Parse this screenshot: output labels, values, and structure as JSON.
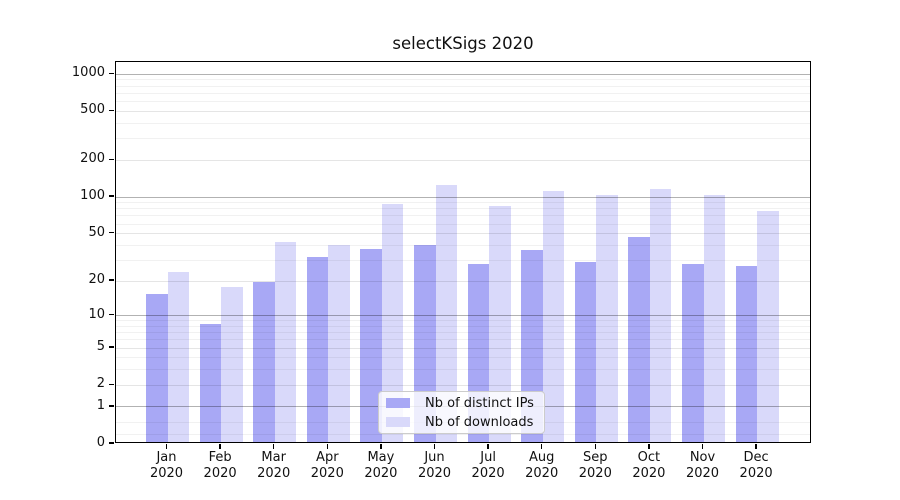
{
  "title": "selectKSigs 2020",
  "chart_data": {
    "type": "bar",
    "title": "selectKSigs 2020",
    "categories": [
      "Jan",
      "Feb",
      "Mar",
      "Apr",
      "May",
      "Jun",
      "Jul",
      "Aug",
      "Sep",
      "Oct",
      "Nov",
      "Dec"
    ],
    "x_year_label": "2020",
    "series": [
      {
        "name": "Nb of distinct IPs",
        "color": "#a8a8f5",
        "values": [
          15,
          8,
          19,
          31,
          36,
          39,
          27,
          35,
          28,
          45,
          27,
          26
        ]
      },
      {
        "name": "Nb of downloads",
        "color": "#d9d9fa",
        "values": [
          23,
          17,
          41,
          39,
          84,
          120,
          81,
          108,
          100,
          112,
          101,
          74
        ]
      }
    ],
    "yscale": "log1p",
    "ylim": [
      0,
      1260
    ],
    "y_tick_labels": [
      "1000",
      "500",
      "200",
      "100",
      "50",
      "20",
      "10",
      "5",
      "2",
      "1",
      "0"
    ],
    "y_tick_values": [
      1000,
      500,
      200,
      100,
      50,
      20,
      10,
      5,
      2,
      1,
      0
    ],
    "y_decade_gridlines": [
      1,
      10,
      100,
      1000
    ],
    "y_minor_gridlines": [
      0.2,
      0.5,
      3,
      4,
      6,
      7,
      8,
      9,
      30,
      40,
      60,
      70,
      80,
      90,
      300,
      400,
      600,
      700,
      800,
      900
    ],
    "grid": true,
    "legend_position": "lower-center-inside"
  },
  "colors": {
    "bar_dark": "#a8a8f5",
    "bar_light": "#d9d9fa",
    "spine": "#000000",
    "grid_major": "#b3b3b3",
    "grid_minor": "#ededed",
    "background": "#ffffff"
  }
}
